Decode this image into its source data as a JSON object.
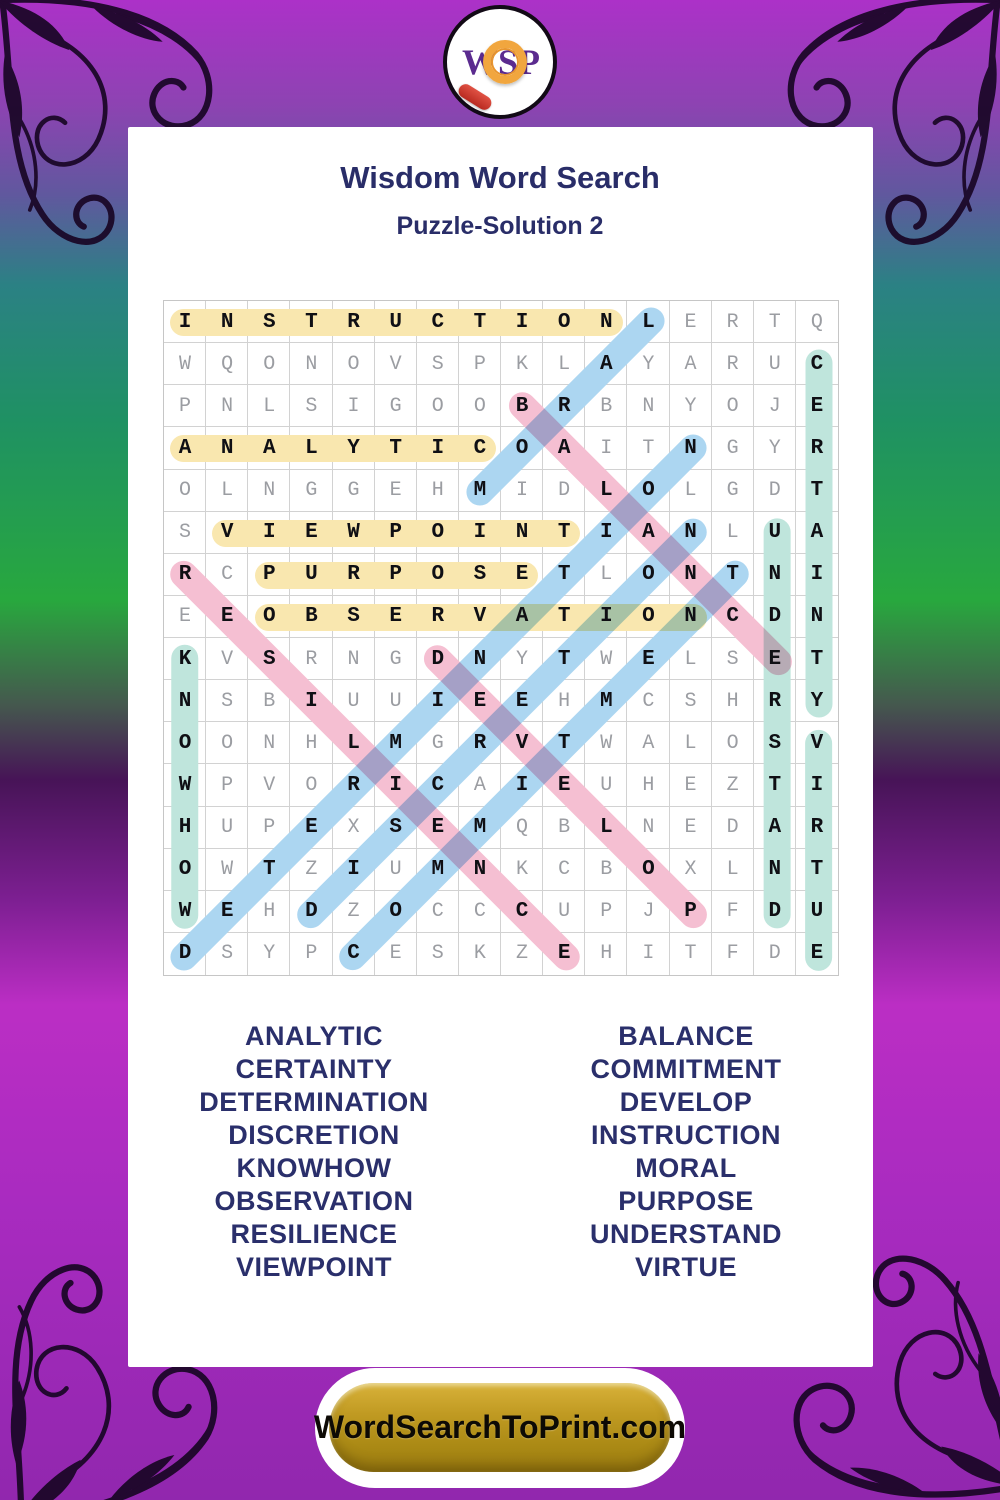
{
  "header": {
    "title": "Wisdom Word Search",
    "subtitle": "Puzzle-Solution 2"
  },
  "logo": {
    "letters": [
      "W",
      "S",
      "P"
    ],
    "ring_color": "#f1a63e",
    "letter_color": "#5b2b8f"
  },
  "puzzle": {
    "size": 16,
    "grid_rows": [
      "INSTRUCTIONLERTQ",
      "WQONOVSPKLAYARUC",
      "PNLSIGOOBRBNYOJE",
      "ANALYTICOAITNGYR",
      "OLNGGEHMIDLOLGDT",
      "SVIEWPOINTIANLUA",
      "RCPURPOSETLONTNI",
      "EEOBSERVATIONCDN",
      "KVSRNGDNYTWELSET",
      "NSBIUUIEEHMCSHRY",
      "OONHLMGRVTWALOSV",
      "WPVORICAIEUHEZTI",
      "HUPEXSEMQBLNEDAR",
      "OWTZIUMNKCBOXLNT",
      "WEHDZOCCCUPJPFDU",
      "DSYPCESKZEHITFDE"
    ],
    "highlight_colors": {
      "across": "#f9e7af",
      "down": "#bfe5dc",
      "diag_up": "#acd6f1",
      "diag_down": "#f5bfd2"
    },
    "solutions": [
      {
        "word": "INSTRUCTION",
        "row": 1,
        "col": 1,
        "dr": 0,
        "dc": 1,
        "color": "across"
      },
      {
        "word": "ANALYTIC",
        "row": 4,
        "col": 1,
        "dr": 0,
        "dc": 1,
        "color": "across"
      },
      {
        "word": "VIEWPOINT",
        "row": 6,
        "col": 2,
        "dr": 0,
        "dc": 1,
        "color": "across"
      },
      {
        "word": "PURPOSE",
        "row": 7,
        "col": 3,
        "dr": 0,
        "dc": 1,
        "color": "across"
      },
      {
        "word": "OBSERVATION",
        "row": 8,
        "col": 3,
        "dr": 0,
        "dc": 1,
        "color": "across"
      },
      {
        "word": "KNOWHOW",
        "row": 9,
        "col": 1,
        "dr": 1,
        "dc": 0,
        "color": "down"
      },
      {
        "word": "CERTAINTY",
        "row": 2,
        "col": 16,
        "dr": 1,
        "dc": 0,
        "color": "down"
      },
      {
        "word": "UNDERSTAND",
        "row": 6,
        "col": 15,
        "dr": 1,
        "dc": 0,
        "color": "down"
      },
      {
        "word": "VIRTUE",
        "row": 11,
        "col": 16,
        "dr": 1,
        "dc": 0,
        "color": "down"
      },
      {
        "word": "MORAL",
        "row": 5,
        "col": 8,
        "dr": -1,
        "dc": 1,
        "color": "diag_up"
      },
      {
        "word": "DETERMINATION",
        "row": 16,
        "col": 1,
        "dr": -1,
        "dc": 1,
        "color": "diag_up"
      },
      {
        "word": "COMMITMENT",
        "row": 16,
        "col": 5,
        "dr": -1,
        "dc": 1,
        "color": "diag_up"
      },
      {
        "word": "DISCRETION",
        "row": 15,
        "col": 4,
        "dr": -1,
        "dc": 1,
        "color": "diag_up"
      },
      {
        "word": "RESILIENCE",
        "row": 7,
        "col": 1,
        "dr": 1,
        "dc": 1,
        "color": "diag_down"
      },
      {
        "word": "BALANCE",
        "row": 3,
        "col": 9,
        "dr": 1,
        "dc": 1,
        "color": "diag_down"
      },
      {
        "word": "DEVELOP",
        "row": 9,
        "col": 7,
        "dr": 1,
        "dc": 1,
        "color": "diag_down"
      }
    ]
  },
  "word_list": {
    "left": [
      "ANALYTIC",
      "CERTAINTY",
      "DETERMINATION",
      "DISCRETION",
      "KNOWHOW",
      "OBSERVATION",
      "RESILIENCE",
      "VIEWPOINT"
    ],
    "right": [
      "BALANCE",
      "COMMITMENT",
      "DEVELOP",
      "INSTRUCTION",
      "MORAL",
      "PURPOSE",
      "UNDERSTAND",
      "VIRTUE"
    ]
  },
  "footer": {
    "button_label": "WordSearchToPrint.com"
  }
}
